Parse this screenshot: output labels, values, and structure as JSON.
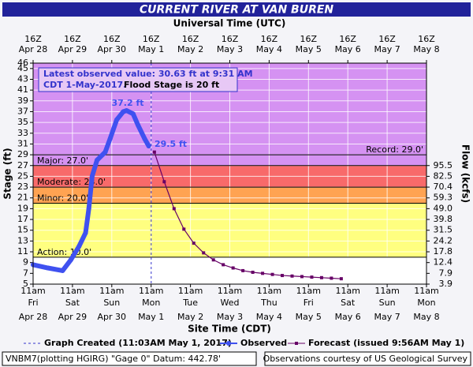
{
  "chart_data": {
    "type": "hydrograph",
    "title": "CURRENT RIVER AT VAN BUREN",
    "top_axis_label": "Universal Time (UTC)",
    "xlabel": "Site Time (CDT)",
    "ylabel": "Stage (ft)",
    "y2label": "Flow (kcfs)",
    "xlim": [
      "04-28 11:00",
      "05-08 11:00"
    ],
    "xticks": [
      {
        "value": "04-28 11:00",
        "label": "11am",
        "day": "Fri",
        "date": "Apr 28",
        "utc": "16Z"
      },
      {
        "value": "04-29 11:00",
        "label": "11am",
        "day": "Sat",
        "date": "Apr 29",
        "utc": "16Z"
      },
      {
        "value": "04-30 11:00",
        "label": "11am",
        "day": "Sun",
        "date": "Apr 30",
        "utc": "16Z"
      },
      {
        "value": "05-01 11:00",
        "label": "11am",
        "day": "Mon",
        "date": "May 1",
        "utc": "16Z"
      },
      {
        "value": "05-02 11:00",
        "label": "11am",
        "day": "Tue",
        "date": "May 2",
        "utc": "16Z"
      },
      {
        "value": "05-03 11:00",
        "label": "11am",
        "day": "Wed",
        "date": "May 3",
        "utc": "16Z"
      },
      {
        "value": "05-04 11:00",
        "label": "11am",
        "day": "Thu",
        "date": "May 4",
        "utc": "16Z"
      },
      {
        "value": "05-05 11:00",
        "label": "11am",
        "day": "Fri",
        "date": "May 5",
        "utc": "16Z"
      },
      {
        "value": "05-06 11:00",
        "label": "11am",
        "day": "Sat",
        "date": "May 6",
        "utc": "16Z"
      },
      {
        "value": "05-07 11:00",
        "label": "11am",
        "day": "Sun",
        "date": "May 7",
        "utc": "16Z"
      },
      {
        "value": "05-08 11:00",
        "label": "11am",
        "day": "Mon",
        "date": "May 8",
        "utc": "16Z"
      }
    ],
    "ylim": [
      5,
      46
    ],
    "yticks": [
      5,
      7,
      9,
      11,
      13,
      15,
      17,
      19,
      21,
      23,
      25,
      27,
      29,
      31,
      33,
      35,
      37,
      39,
      41,
      43,
      45,
      46
    ],
    "y2ticks": [
      95.5,
      82.5,
      70.4,
      59.3,
      {
        "value": 49,
        "label": "49.0"
      },
      39.8,
      31.5,
      24.2,
      17.8,
      12.4,
      7.9,
      3.9
    ],
    "y2tick_stages": [
      27,
      25,
      23,
      21,
      19,
      17,
      15,
      13,
      11,
      9,
      7,
      5
    ],
    "grid": true,
    "flood_stages": [
      {
        "value": 10,
        "label": "Action: 10.0'",
        "color": "#ffff80"
      },
      {
        "value": 20,
        "label": "Minor: 20.0'",
        "color": "#ffa352"
      },
      {
        "value": 23,
        "label": "Moderate: 23.0'",
        "color": "#f86a6a"
      },
      {
        "value": 27,
        "label": "Major: 27.0'",
        "color": "#d592f2"
      }
    ],
    "record": {
      "value": 29,
      "label": "Record: 29.0'"
    },
    "note_lines": [
      "Latest observed value: 30.63 ft at 9:31 AM",
      "CDT 1-May-2017."
    ],
    "note_flood": "Flood Stage is 20 ft",
    "annotations": [
      "37.2 ft",
      "29.5 ft"
    ],
    "created_line": {
      "x": "05-01 11:03",
      "label": "Graph Created (11:03AM May 1, 2017)"
    },
    "series": [
      {
        "name": "Observed",
        "color": "#3f51f0",
        "x": [
          "04-28 11:00",
          "04-28 20:00",
          "04-29 05:00",
          "04-29 10:00",
          "04-29 15:00",
          "04-29 19:00",
          "04-29 21:00",
          "04-29 23:00",
          "04-30 02:00",
          "04-30 07:00",
          "04-30 10:00",
          "04-30 14:00",
          "04-30 18:00",
          "04-30 20:00",
          "05-01 00:00",
          "05-01 03:00",
          "05-01 07:00",
          "05-01 09:31"
        ],
        "values": [
          8.6,
          8.0,
          7.5,
          9.5,
          12.0,
          14.5,
          19,
          25,
          28,
          29.5,
          32,
          35.5,
          37,
          37.2,
          36.6,
          34.5,
          32,
          30.63
        ]
      },
      {
        "name": "Forecast (issued 9:56AM May 1)",
        "color": "#660066",
        "x": [
          "05-01 13:00",
          "05-01 19:00",
          "05-02 01:00",
          "05-02 07:00",
          "05-02 13:00",
          "05-02 19:00",
          "05-03 01:00",
          "05-03 07:00",
          "05-03 13:00",
          "05-03 19:00",
          "05-04 01:00",
          "05-04 07:00",
          "05-04 13:00",
          "05-04 19:00",
          "05-05 01:00",
          "05-05 07:00",
          "05-05 13:00",
          "05-05 19:00",
          "05-06 01:00",
          "05-06 07:00"
        ],
        "values": [
          29.5,
          24.0,
          19.0,
          15.2,
          12.6,
          10.8,
          9.5,
          8.6,
          8.0,
          7.5,
          7.2,
          7.0,
          6.8,
          6.6,
          6.5,
          6.4,
          6.3,
          6.2,
          6.1,
          6.0
        ]
      }
    ],
    "footer_left": "VNBM7(plotting HGIRG) \"Gage 0\" Datum: 442.78'",
    "footer_right": "Observations courtesy of US Geological Survey"
  }
}
